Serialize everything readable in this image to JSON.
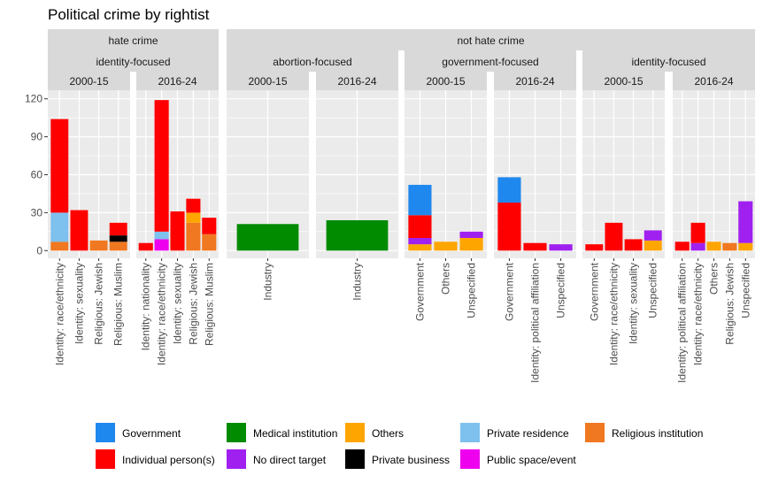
{
  "chart_data": {
    "type": "bar",
    "stacked": true,
    "title": "Political crime by rightist",
    "xlabel": "",
    "ylabel": "",
    "ylim": [
      0,
      120
    ],
    "yticks": [
      0,
      30,
      60,
      90,
      120
    ],
    "grid": true,
    "legend_position": "bottom",
    "stack_order": [
      "Government",
      "Individual person(s)",
      "Medical institution",
      "No direct target",
      "Others",
      "Private business",
      "Private residence",
      "Public space/event",
      "Religious institution"
    ],
    "legend": [
      {
        "name": "Government",
        "color": "#1F88EE"
      },
      {
        "name": "Individual person(s)",
        "color": "#FF0000"
      },
      {
        "name": "Medical institution",
        "color": "#008B00"
      },
      {
        "name": "No direct target",
        "color": "#A020F0"
      },
      {
        "name": "Others",
        "color": "#FFA500"
      },
      {
        "name": "Private business",
        "color": "#000000"
      },
      {
        "name": "Private residence",
        "color": "#7EC0EE"
      },
      {
        "name": "Public space/event",
        "color": "#EE00EE"
      },
      {
        "name": "Religious institution",
        "color": "#F07820"
      }
    ],
    "facet_strips": {
      "level1": [
        {
          "label": "hate crime",
          "panels": [
            0,
            1
          ]
        },
        {
          "label": "not hate crime",
          "panels": [
            2,
            7
          ]
        }
      ],
      "level2": [
        {
          "label": "identity-focused",
          "panels": [
            0,
            1
          ]
        },
        {
          "label": "abortion-focused",
          "panels": [
            2,
            3
          ]
        },
        {
          "label": "government-focused",
          "panels": [
            4,
            5
          ]
        },
        {
          "label": "identity-focused",
          "panels": [
            6,
            7
          ]
        }
      ]
    },
    "panels": [
      {
        "period": "2000-15",
        "categories": [
          "Identity: race/ethnicity",
          "Identity: sexuality",
          "Religious: Jewish",
          "Religious: Muslim"
        ],
        "series": {
          "Identity: race/ethnicity": {
            "Individual person(s)": 74,
            "Private residence": 23,
            "Religious institution": 7
          },
          "Identity: sexuality": {
            "Individual person(s)": 32
          },
          "Religious: Jewish": {
            "Religious institution": 8
          },
          "Religious: Muslim": {
            "Individual person(s)": 10,
            "Private business": 5,
            "Religious institution": 7
          }
        }
      },
      {
        "period": "2016-24",
        "categories": [
          "Identity: nationality",
          "Identity: race/ethnicity",
          "Identity: sexuality",
          "Religious: Jewish",
          "Religious: Muslim"
        ],
        "series": {
          "Identity: nationality": {
            "Individual person(s)": 6
          },
          "Identity: race/ethnicity": {
            "Individual person(s)": 104,
            "Private residence": 6,
            "Public space/event": 9
          },
          "Identity: sexuality": {
            "Individual person(s)": 31
          },
          "Religious: Jewish": {
            "Individual person(s)": 11,
            "Others": 8,
            "Religious institution": 22
          },
          "Religious: Muslim": {
            "Individual person(s)": 13,
            "Religious institution": 13
          }
        }
      },
      {
        "period": "2000-15",
        "categories": [
          "Industry"
        ],
        "series": {
          "Industry": {
            "Medical institution": 21
          }
        }
      },
      {
        "period": "2016-24",
        "categories": [
          "Industry"
        ],
        "series": {
          "Industry": {
            "Medical institution": 24
          }
        }
      },
      {
        "period": "2000-15",
        "categories": [
          "Government",
          "Others",
          "Unspecified"
        ],
        "series": {
          "Government": {
            "Government": 24,
            "Individual person(s)": 18,
            "No direct target": 5,
            "Others": 5
          },
          "Others": {
            "Others": 7
          },
          "Unspecified": {
            "No direct target": 5,
            "Others": 10
          }
        }
      },
      {
        "period": "2016-24",
        "categories": [
          "Government",
          "Identity: political affiliation",
          "Unspecified"
        ],
        "series": {
          "Government": {
            "Government": 20,
            "Individual person(s)": 38
          },
          "Identity: political affiliation": {
            "Individual person(s)": 6
          },
          "Unspecified": {
            "No direct target": 5
          }
        }
      },
      {
        "period": "2000-15",
        "categories": [
          "Government",
          "Identity: race/ethnicity",
          "Identity: sexuality",
          "Unspecified"
        ],
        "series": {
          "Government": {
            "Individual person(s)": 5
          },
          "Identity: race/ethnicity": {
            "Individual person(s)": 22
          },
          "Identity: sexuality": {
            "Individual person(s)": 9
          },
          "Unspecified": {
            "No direct target": 8,
            "Others": 8
          }
        }
      },
      {
        "period": "2016-24",
        "categories": [
          "Identity: political affiliation",
          "Identity: race/ethnicity",
          "Others",
          "Religious: Jewish",
          "Unspecified"
        ],
        "series": {
          "Identity: political affiliation": {
            "Individual person(s)": 7
          },
          "Identity: race/ethnicity": {
            "Individual person(s)": 16,
            "No direct target": 6
          },
          "Others": {
            "Others": 7
          },
          "Religious: Jewish": {
            "Religious institution": 6
          },
          "Unspecified": {
            "No direct target": 33,
            "Others": 6
          }
        }
      }
    ]
  }
}
